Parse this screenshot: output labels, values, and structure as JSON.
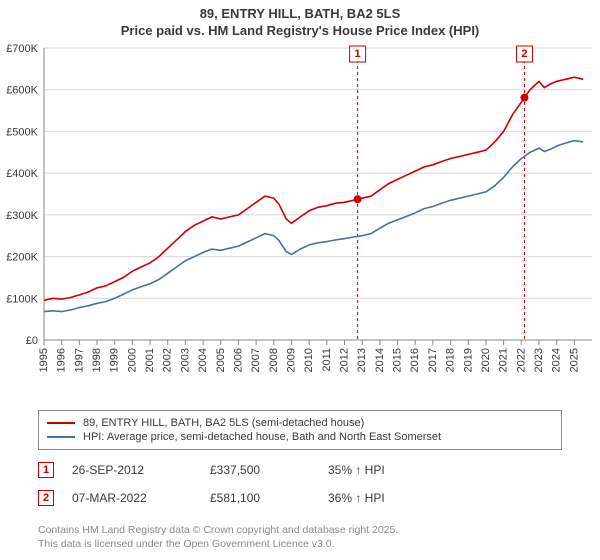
{
  "title_line1": "89, ENTRY HILL, BATH, BA2 5LS",
  "title_line2": "Price paid vs. HM Land Registry's House Price Index (HPI)",
  "chart": {
    "type": "line",
    "background_color": "#ffffff",
    "grid_color": "#d8d8d8",
    "axis_color": "#888888",
    "xlim": [
      1995,
      2026
    ],
    "ylim": [
      0,
      700000
    ],
    "ytick_step": 100000,
    "ytick_labels": [
      "£0",
      "£100K",
      "£200K",
      "£300K",
      "£400K",
      "£500K",
      "£600K",
      "£700K"
    ],
    "xticks": [
      1995,
      1996,
      1997,
      1998,
      1999,
      2000,
      2001,
      2002,
      2003,
      2004,
      2005,
      2006,
      2007,
      2008,
      2009,
      2010,
      2011,
      2012,
      2013,
      2014,
      2015,
      2016,
      2017,
      2018,
      2019,
      2020,
      2021,
      2022,
      2023,
      2024,
      2025
    ],
    "label_fontsize": 11,
    "series": [
      {
        "name": "89, ENTRY HILL, BATH, BA2 5LS (semi-detached house)",
        "color": "#cc0000",
        "line_width": 1.6,
        "data": [
          [
            1995,
            95000
          ],
          [
            1995.5,
            100000
          ],
          [
            1996,
            98000
          ],
          [
            1996.5,
            102000
          ],
          [
            1997,
            108000
          ],
          [
            1997.5,
            115000
          ],
          [
            1998,
            125000
          ],
          [
            1998.5,
            130000
          ],
          [
            1999,
            140000
          ],
          [
            1999.5,
            150000
          ],
          [
            2000,
            165000
          ],
          [
            2000.5,
            175000
          ],
          [
            2001,
            185000
          ],
          [
            2001.5,
            200000
          ],
          [
            2002,
            220000
          ],
          [
            2002.5,
            240000
          ],
          [
            2003,
            260000
          ],
          [
            2003.5,
            275000
          ],
          [
            2004,
            285000
          ],
          [
            2004.5,
            295000
          ],
          [
            2005,
            290000
          ],
          [
            2005.5,
            295000
          ],
          [
            2006,
            300000
          ],
          [
            2006.5,
            315000
          ],
          [
            2007,
            330000
          ],
          [
            2007.5,
            345000
          ],
          [
            2008,
            340000
          ],
          [
            2008.3,
            325000
          ],
          [
            2008.7,
            290000
          ],
          [
            2009,
            280000
          ],
          [
            2009.5,
            295000
          ],
          [
            2010,
            310000
          ],
          [
            2010.5,
            318000
          ],
          [
            2011,
            322000
          ],
          [
            2011.5,
            328000
          ],
          [
            2012,
            330000
          ],
          [
            2012.5,
            335000
          ],
          [
            2012.74,
            337500
          ],
          [
            2013,
            340000
          ],
          [
            2013.5,
            345000
          ],
          [
            2014,
            360000
          ],
          [
            2014.5,
            375000
          ],
          [
            2015,
            385000
          ],
          [
            2015.5,
            395000
          ],
          [
            2016,
            405000
          ],
          [
            2016.5,
            415000
          ],
          [
            2017,
            420000
          ],
          [
            2017.5,
            428000
          ],
          [
            2018,
            435000
          ],
          [
            2018.5,
            440000
          ],
          [
            2019,
            445000
          ],
          [
            2019.5,
            450000
          ],
          [
            2020,
            455000
          ],
          [
            2020.5,
            475000
          ],
          [
            2021,
            500000
          ],
          [
            2021.5,
            540000
          ],
          [
            2022,
            570000
          ],
          [
            2022.18,
            581100
          ],
          [
            2022.5,
            600000
          ],
          [
            2023,
            620000
          ],
          [
            2023.3,
            605000
          ],
          [
            2023.7,
            615000
          ],
          [
            2024,
            620000
          ],
          [
            2024.5,
            625000
          ],
          [
            2025,
            630000
          ],
          [
            2025.5,
            625000
          ]
        ]
      },
      {
        "name": "HPI: Average price, semi-detached house, Bath and North East Somerset",
        "color": "#4a6fa5",
        "line_width": 1.6,
        "data": [
          [
            1995,
            68000
          ],
          [
            1995.5,
            70000
          ],
          [
            1996,
            68000
          ],
          [
            1996.5,
            72000
          ],
          [
            1997,
            78000
          ],
          [
            1997.5,
            82000
          ],
          [
            1998,
            88000
          ],
          [
            1998.5,
            92000
          ],
          [
            1999,
            100000
          ],
          [
            1999.5,
            110000
          ],
          [
            2000,
            120000
          ],
          [
            2000.5,
            128000
          ],
          [
            2001,
            135000
          ],
          [
            2001.5,
            145000
          ],
          [
            2002,
            160000
          ],
          [
            2002.5,
            175000
          ],
          [
            2003,
            190000
          ],
          [
            2003.5,
            200000
          ],
          [
            2004,
            210000
          ],
          [
            2004.5,
            218000
          ],
          [
            2005,
            215000
          ],
          [
            2005.5,
            220000
          ],
          [
            2006,
            225000
          ],
          [
            2006.5,
            235000
          ],
          [
            2007,
            245000
          ],
          [
            2007.5,
            255000
          ],
          [
            2008,
            250000
          ],
          [
            2008.3,
            238000
          ],
          [
            2008.7,
            212000
          ],
          [
            2009,
            205000
          ],
          [
            2009.5,
            218000
          ],
          [
            2010,
            228000
          ],
          [
            2010.5,
            233000
          ],
          [
            2011,
            236000
          ],
          [
            2011.5,
            240000
          ],
          [
            2012,
            243000
          ],
          [
            2012.5,
            247000
          ],
          [
            2013,
            250000
          ],
          [
            2013.5,
            255000
          ],
          [
            2014,
            268000
          ],
          [
            2014.5,
            280000
          ],
          [
            2015,
            288000
          ],
          [
            2015.5,
            296000
          ],
          [
            2016,
            305000
          ],
          [
            2016.5,
            315000
          ],
          [
            2017,
            320000
          ],
          [
            2017.5,
            328000
          ],
          [
            2018,
            335000
          ],
          [
            2018.5,
            340000
          ],
          [
            2019,
            345000
          ],
          [
            2019.5,
            350000
          ],
          [
            2020,
            355000
          ],
          [
            2020.5,
            370000
          ],
          [
            2021,
            390000
          ],
          [
            2021.5,
            415000
          ],
          [
            2022,
            435000
          ],
          [
            2022.5,
            450000
          ],
          [
            2023,
            460000
          ],
          [
            2023.3,
            452000
          ],
          [
            2023.7,
            458000
          ],
          [
            2024,
            465000
          ],
          [
            2024.5,
            472000
          ],
          [
            2025,
            478000
          ],
          [
            2025.5,
            475000
          ]
        ]
      }
    ],
    "sale_markers": [
      {
        "num": "1",
        "x": 2012.74,
        "y": 337500
      },
      {
        "num": "2",
        "x": 2022.18,
        "y": 581100
      }
    ]
  },
  "legend": {
    "items": [
      {
        "color": "#cc0000",
        "label": "89, ENTRY HILL, BATH, BA2 5LS (semi-detached house)"
      },
      {
        "color": "#4a6fa5",
        "label": "HPI: Average price, semi-detached house, Bath and North East Somerset"
      }
    ]
  },
  "sales": [
    {
      "num": "1",
      "date": "26-SEP-2012",
      "price": "£337,500",
      "diff": "35% ↑ HPI"
    },
    {
      "num": "2",
      "date": "07-MAR-2022",
      "price": "£581,100",
      "diff": "36% ↑ HPI"
    }
  ],
  "footnote_line1": "Contains HM Land Registry data © Crown copyright and database right 2025.",
  "footnote_line2": "This data is licensed under the Open Government Licence v3.0."
}
